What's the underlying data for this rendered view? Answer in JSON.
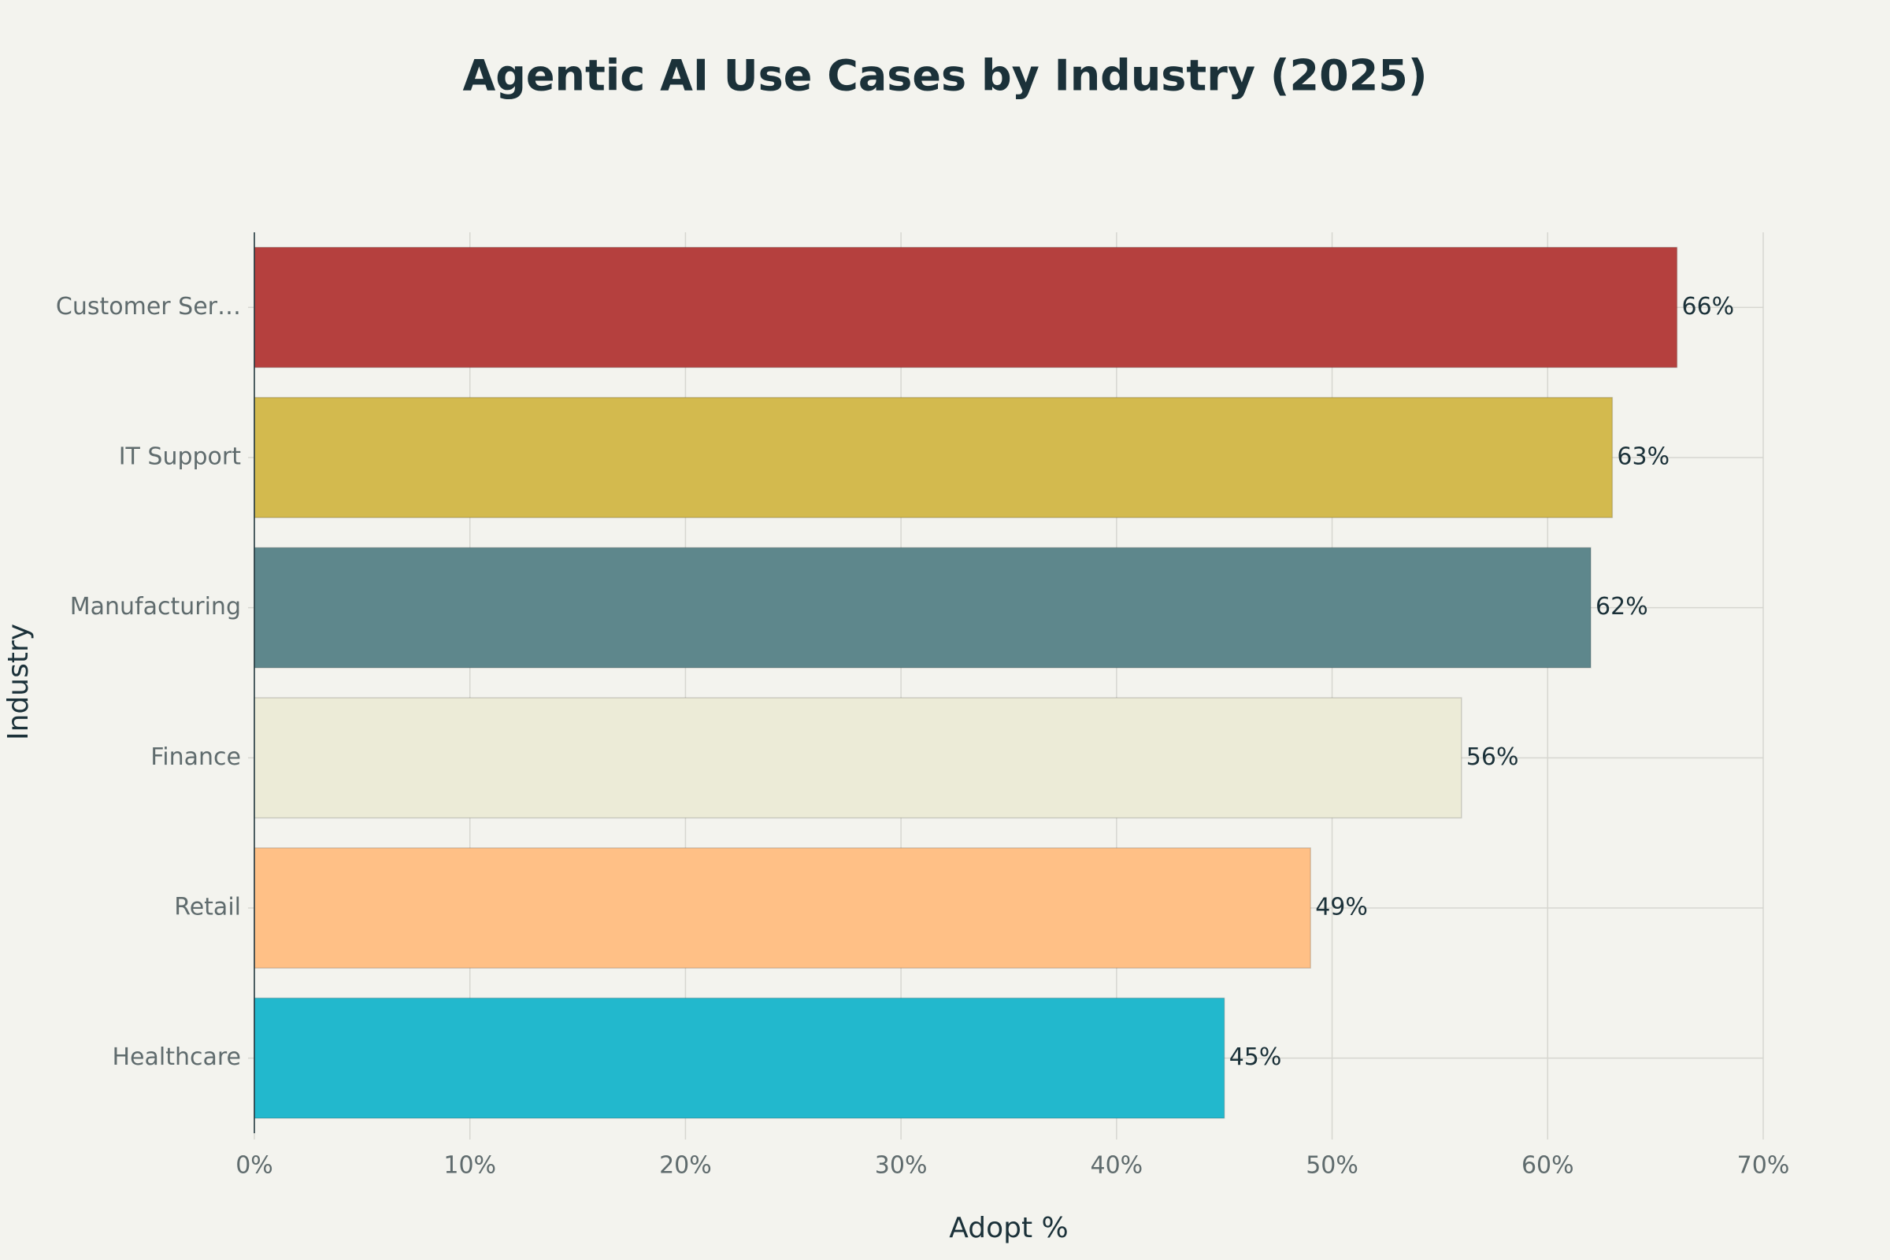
{
  "chart_data": {
    "type": "bar",
    "orientation": "horizontal",
    "title": "Agentic AI Use Cases by Industry (2025)",
    "x_label": "Adopt %",
    "y_label": "Industry",
    "categories": [
      "Customer Ser…",
      "IT Support",
      "Manufacturing",
      "Finance",
      "Retail",
      "Healthcare"
    ],
    "values": [
      66,
      63,
      62,
      56,
      49,
      45
    ],
    "value_labels": [
      "66%",
      "63%",
      "62%",
      "56%",
      "49%",
      "45%"
    ],
    "colors": [
      "#b5403e",
      "#d3ba4e",
      "#5e878c",
      "#ecebd7",
      "#ffc086",
      "#22b8cd"
    ],
    "xlim": [
      0,
      70
    ],
    "xticks": [
      {
        "value": 0,
        "label": "0%"
      },
      {
        "value": 10,
        "label": "10%"
      },
      {
        "value": 20,
        "label": "20%"
      },
      {
        "value": 30,
        "label": "30%"
      },
      {
        "value": 40,
        "label": "40%"
      },
      {
        "value": 50,
        "label": "50%"
      },
      {
        "value": 60,
        "label": "60%"
      },
      {
        "value": 70,
        "label": "70%"
      }
    ],
    "grid": true
  }
}
